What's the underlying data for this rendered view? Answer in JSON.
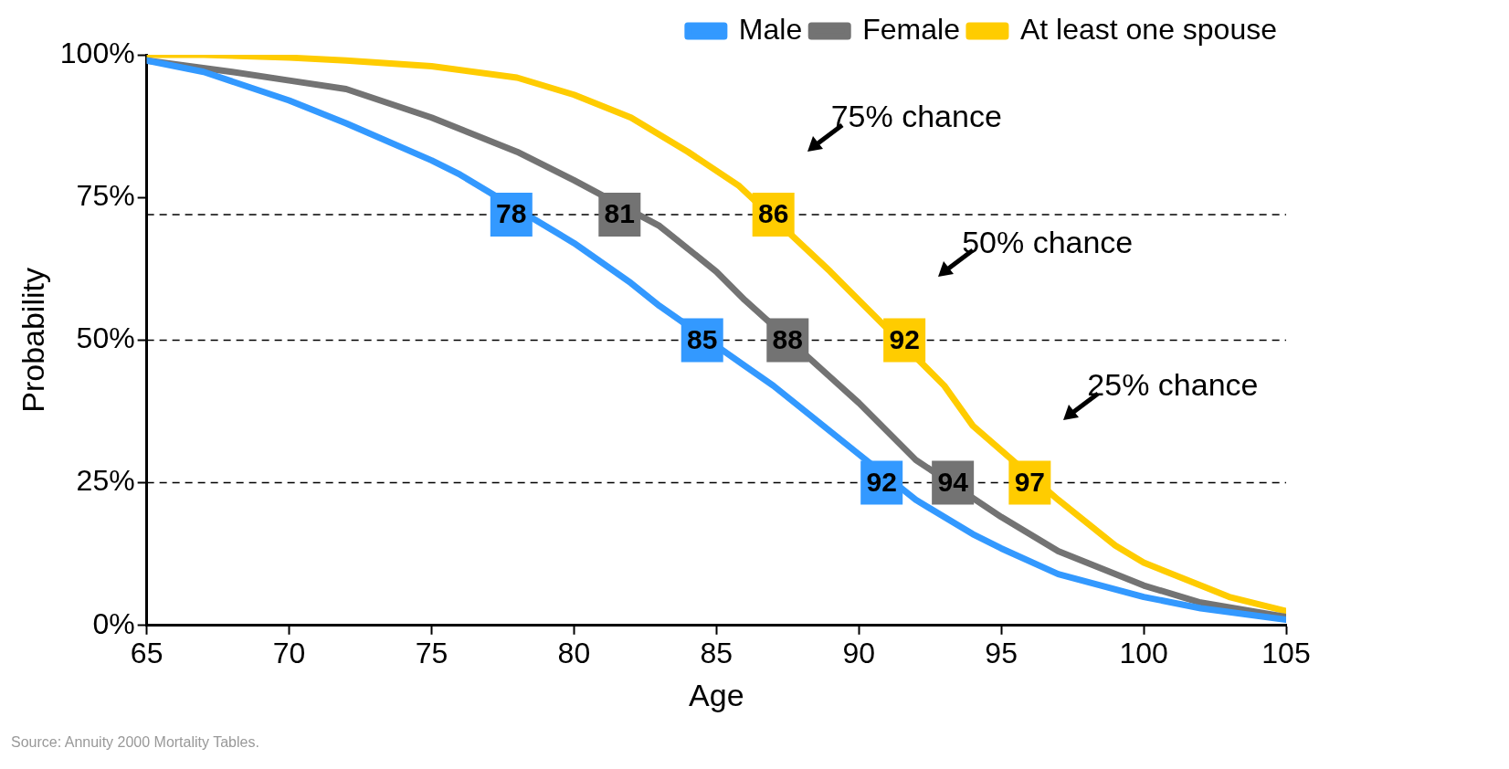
{
  "chart_data": {
    "type": "line",
    "xlabel": "Age",
    "ylabel": "Probability",
    "xlim": [
      65,
      105
    ],
    "xticks": [
      65,
      70,
      75,
      80,
      85,
      90,
      95,
      100,
      105
    ],
    "ylim": [
      0,
      100
    ],
    "yticks": [
      {
        "value": 0,
        "label": "0%"
      },
      {
        "value": 25,
        "label": "25%"
      },
      {
        "value": 50,
        "label": "50%"
      },
      {
        "value": 75,
        "label": "75%"
      },
      {
        "value": 100,
        "label": "100%"
      }
    ],
    "grid": false,
    "legend": "top right",
    "series": [
      {
        "name": "Male",
        "color": "#3399ff",
        "x": [
          65,
          67,
          70,
          72,
          75,
          76,
          79.5,
          80,
          82,
          83,
          86,
          87,
          90,
          92,
          94,
          95,
          97,
          100,
          102,
          105
        ],
        "values": [
          99,
          97,
          92,
          88,
          81.5,
          79,
          68.5,
          67,
          60,
          56,
          45.5,
          42,
          30,
          22,
          16,
          13.5,
          9,
          5,
          3,
          1
        ]
      },
      {
        "name": "Female",
        "color": "#737373",
        "x": [
          65,
          68,
          70,
          72,
          75,
          78,
          80,
          83,
          85,
          86,
          89,
          90,
          92,
          95,
          97,
          100,
          102,
          105
        ],
        "values": [
          99,
          97,
          95.5,
          94,
          89,
          83,
          78,
          70,
          62,
          57,
          43.5,
          39,
          29,
          19,
          13,
          7,
          4,
          1.5
        ]
      },
      {
        "name": "At least one spouse",
        "color": "#ffcc00",
        "x": [
          65,
          67,
          70,
          72,
          75,
          78,
          80,
          82,
          84,
          85.8,
          89,
          90,
          93,
          94,
          97,
          98,
          99,
          100,
          102,
          103,
          105
        ],
        "values": [
          100,
          100,
          99.5,
          99,
          98,
          96,
          93,
          89,
          83,
          77,
          62,
          57,
          42,
          35,
          22,
          18,
          14,
          11,
          7,
          5,
          2.5
        ]
      }
    ],
    "ref_lines": [
      {
        "axis": "y",
        "value": 72,
        "color": "#000000",
        "line_style": "dashed"
      },
      {
        "axis": "y",
        "value": 50,
        "color": "#000000",
        "line_style": "dashed"
      },
      {
        "axis": "y",
        "value": 25,
        "color": "#000000",
        "line_style": "dashed"
      }
    ],
    "annotations": [
      {
        "text": "78",
        "x": 77.8,
        "y": 72
      },
      {
        "text": "81",
        "x": 81.6,
        "y": 72
      },
      {
        "text": "86",
        "x": 87,
        "y": 72
      },
      {
        "text": "85",
        "x": 84.5,
        "y": 50
      },
      {
        "text": "88",
        "x": 87.5,
        "y": 50
      },
      {
        "text": "92",
        "x": 91.6,
        "y": 50
      },
      {
        "text": "92",
        "x": 90.8,
        "y": 25
      },
      {
        "text": "94",
        "x": 93.3,
        "y": 25
      },
      {
        "text": "97",
        "x": 96,
        "y": 25
      },
      "75% chance",
      "50% chance",
      "25% chance",
      "Source: Annuity 2000 Mortality Tables."
    ]
  }
}
